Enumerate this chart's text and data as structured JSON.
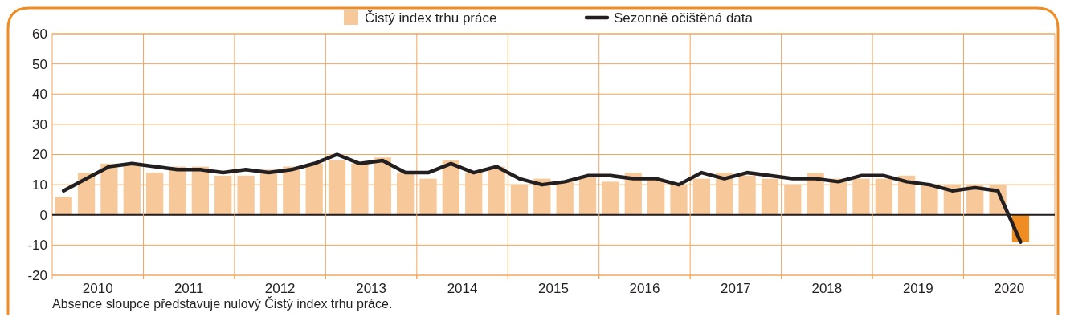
{
  "chart_data": {
    "type": "bar",
    "legend": "top",
    "grid": "y",
    "xlim": [
      2010,
      2021
    ],
    "xticks": [
      {
        "value": 2010,
        "label": null
      },
      {
        "value": 2010.5,
        "label": "2010"
      },
      {
        "value": 2011,
        "label": null
      },
      {
        "value": 2011.5,
        "label": "2011"
      },
      {
        "value": 2012,
        "label": null
      },
      {
        "value": 2012.5,
        "label": "2012"
      },
      {
        "value": 2013,
        "label": null
      },
      {
        "value": 2013.5,
        "label": "2013"
      },
      {
        "value": 2014,
        "label": null
      },
      {
        "value": 2014.5,
        "label": "2014"
      },
      {
        "value": 2015,
        "label": null
      },
      {
        "value": 2015.5,
        "label": "2015"
      },
      {
        "value": 2016,
        "label": null
      },
      {
        "value": 2016.5,
        "label": "2016"
      },
      {
        "value": 2017,
        "label": null
      },
      {
        "value": 2017.5,
        "label": "2017"
      },
      {
        "value": 2018,
        "label": null
      },
      {
        "value": 2018.5,
        "label": "2018"
      },
      {
        "value": 2019,
        "label": null
      },
      {
        "value": 2019.5,
        "label": "2019"
      },
      {
        "value": 2020,
        "label": null
      },
      {
        "value": 2020.5,
        "label": "2020"
      },
      {
        "value": 2021,
        "label": null
      }
    ],
    "ylim": [
      -20,
      60
    ],
    "yticks": [
      -20,
      -10,
      0,
      10,
      20,
      30,
      40,
      50,
      60
    ],
    "x": [
      2010.125,
      2010.375,
      2010.625,
      2010.875,
      2011.125,
      2011.375,
      2011.625,
      2011.875,
      2012.125,
      2012.375,
      2012.625,
      2012.875,
      2013.125,
      2013.375,
      2013.625,
      2013.875,
      2014.125,
      2014.375,
      2014.625,
      2014.875,
      2015.125,
      2015.375,
      2015.625,
      2015.875,
      2016.125,
      2016.375,
      2016.625,
      2016.875,
      2017.125,
      2017.375,
      2017.625,
      2017.875,
      2018.125,
      2018.375,
      2018.625,
      2018.875,
      2019.125,
      2019.375,
      2019.625,
      2019.875,
      2020.125,
      2020.375,
      2020.625
    ],
    "ref_lines": [
      {
        "axis": "y",
        "value": 0,
        "color": "#231f20"
      },
      {
        "axis": "x",
        "value": 2011,
        "color": "#f2a65a"
      },
      {
        "axis": "x",
        "value": 2012,
        "color": "#f2a65a"
      },
      {
        "axis": "x",
        "value": 2013,
        "color": "#f2a65a"
      },
      {
        "axis": "x",
        "value": 2014,
        "color": "#f2a65a"
      },
      {
        "axis": "x",
        "value": 2015,
        "color": "#f2a65a"
      },
      {
        "axis": "x",
        "value": 2016,
        "color": "#f2a65a"
      },
      {
        "axis": "x",
        "value": 2017,
        "color": "#f2a65a"
      },
      {
        "axis": "x",
        "value": 2018,
        "color": "#f2a65a"
      },
      {
        "axis": "x",
        "value": 2019,
        "color": "#f2a65a"
      },
      {
        "axis": "x",
        "value": 2020,
        "color": "#f2a65a"
      }
    ],
    "annotations": [
      "Absence sloupce představuje nulový Čistý index trhu práce."
    ],
    "series": [
      {
        "name": "Čistý index trhu práce",
        "color": "#f7c99a",
        "colors": [
          "#f7c99a",
          "#f7c99a",
          "#f7c99a",
          "#f7c99a",
          "#f7c99a",
          "#f7c99a",
          "#f7c99a",
          "#f7c99a",
          "#f7c99a",
          "#f7c99a",
          "#f7c99a",
          "#f7c99a",
          "#f7c99a",
          "#f7c99a",
          "#f7c99a",
          "#f7c99a",
          "#f7c99a",
          "#f7c99a",
          "#f7c99a",
          "#f7c99a",
          "#f7c99a",
          "#f7c99a",
          "#f7c99a",
          "#f7c99a",
          "#f7c99a",
          "#f7c99a",
          "#f7c99a",
          "#f7c99a",
          "#f7c99a",
          "#f7c99a",
          "#f7c99a",
          "#f7c99a",
          "#f7c99a",
          "#f7c99a",
          "#f7c99a",
          "#f7c99a",
          "#f7c99a",
          "#f7c99a",
          "#f7c99a",
          "#f7c99a",
          "#f7c99a",
          "#f7c99a",
          "#ef8c22"
        ],
        "values": [
          6,
          14,
          17,
          17,
          14,
          16,
          16,
          13,
          13,
          15,
          16,
          17,
          18,
          17,
          19,
          14,
          12,
          18,
          14,
          16,
          10,
          12,
          11,
          13,
          11,
          14,
          12,
          10,
          12,
          14,
          13,
          12,
          10,
          14,
          12,
          12,
          12,
          13,
          10,
          10,
          10,
          10,
          -9
        ]
      },
      {
        "name": "Sezonně očištěná data",
        "type": "line",
        "color": "#231f20",
        "values": [
          8,
          12,
          16,
          17,
          16,
          15,
          15,
          14,
          15,
          14,
          15,
          17,
          20,
          17,
          18,
          14,
          14,
          17,
          14,
          16,
          12,
          10,
          11,
          13,
          13,
          12,
          12,
          10,
          14,
          12,
          14,
          13,
          12,
          12,
          11,
          13,
          13,
          11,
          10,
          8,
          9,
          8,
          -9
        ]
      }
    ]
  }
}
